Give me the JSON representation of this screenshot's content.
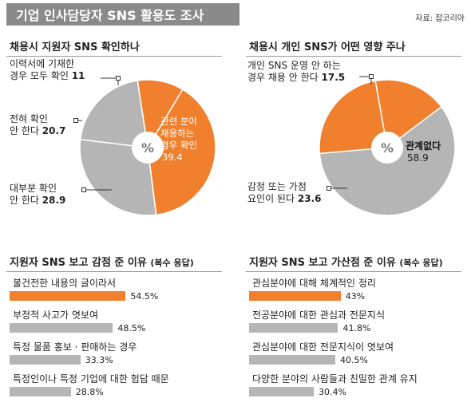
{
  "header": {
    "title": "기업 인사담당자 SNS 활용도 조사",
    "source": "자료: 잡코리아"
  },
  "colors": {
    "orange": "#f0802e",
    "gray": "#b5b5b5",
    "title_bg": "#8a8a8a"
  },
  "chart_data": [
    {
      "type": "pie",
      "title": "채용시 지원자 SNS 확인하나",
      "center_label": "%",
      "slices": [
        {
          "label_lines": [
            "관련 분야",
            "채용하는",
            "경우 확인"
          ],
          "value": 39.4,
          "color": "#f0802e"
        },
        {
          "label_lines": [
            "대부분 확인",
            "안 한다"
          ],
          "value": 28.9,
          "color": "#b5b5b5"
        },
        {
          "label_lines": [
            "전혀 확인",
            "안 한다"
          ],
          "value": 20.7,
          "color": "#b5b5b5"
        },
        {
          "label_lines": [
            "이력서에 기재한",
            "경우 모두 확인"
          ],
          "value": 11,
          "color": "#f0802e"
        }
      ]
    },
    {
      "type": "pie",
      "title": "채용시 개인 SNS가 어떤 영향 주나",
      "center_label": "%",
      "slices": [
        {
          "label_lines": [
            "관계없다"
          ],
          "value": 58.9,
          "color": "#b5b5b5"
        },
        {
          "label_lines": [
            "감정 또는 가점",
            "요인이 된다"
          ],
          "value": 23.6,
          "color": "#f0802e"
        },
        {
          "label_lines": [
            "개인 SNS 운영 안 하는",
            "경우 채용 안 한다"
          ],
          "value": 17.5,
          "color": "#f0802e"
        }
      ]
    },
    {
      "type": "bar",
      "title": "지원자 SNS 보고 감점 준 이유",
      "subtitle": "(복수 응답)",
      "unit": "%",
      "categories": [
        "불건전한 내용의 글이라서",
        "부정적 사고가 엿보여",
        "특정 물품 홍보 · 판매하는 경우",
        "특정인이나 특정 기업에 대한 험담 때문"
      ],
      "values": [
        54.5,
        48.5,
        33.3,
        28.8
      ],
      "colors": [
        "#f0802e",
        "#b5b5b5",
        "#b5b5b5",
        "#b5b5b5"
      ],
      "xlim": [
        0,
        60
      ]
    },
    {
      "type": "bar",
      "title": "지원자 SNS 보고 가산점 준 이유",
      "subtitle": "(복수 응답)",
      "unit": "%",
      "categories": [
        "관심분야에 대해 체계적인 정리",
        "전공분야에 대한 관심과 전문지식",
        "관심분야에 대한 전문지식이 엿보여",
        "다양한 분야의 사람들과 친밀한 관계 유지"
      ],
      "values": [
        43,
        41.8,
        40.5,
        30.4
      ],
      "colors": [
        "#f0802e",
        "#b5b5b5",
        "#b5b5b5",
        "#b5b5b5"
      ],
      "xlim": [
        0,
        60
      ]
    }
  ]
}
